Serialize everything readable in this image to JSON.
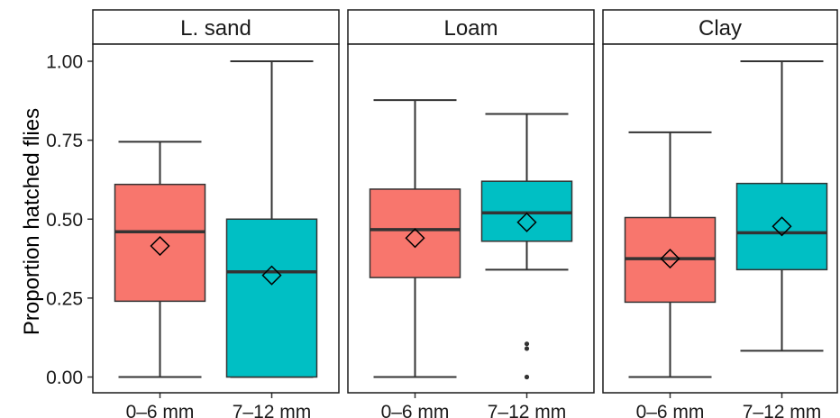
{
  "chart_data": {
    "type": "boxplot",
    "ylabel": "Proportion hatched flies",
    "xlabel": "",
    "ylim": [
      -0.04,
      1.05
    ],
    "y_ticks": [
      "0.00",
      "0.25",
      "0.50",
      "0.75",
      "1.00"
    ],
    "y_tick_values": [
      0,
      0.25,
      0.5,
      0.75,
      1.0
    ],
    "categories": [
      "0–6 mm",
      "7–12 mm"
    ],
    "colors": {
      "0–6 mm": "#F8766D",
      "7–12 mm": "#00BFC4"
    },
    "mean_marker": "diamond",
    "grid": false,
    "legend": "none",
    "facets": [
      {
        "label": "L. sand",
        "boxes": [
          {
            "category": "0–6 mm",
            "min": 0.0,
            "q1": 0.24,
            "median": 0.46,
            "q3": 0.61,
            "max": 0.745,
            "mean": 0.415,
            "outliers": []
          },
          {
            "category": "7–12 mm",
            "min": 0.0,
            "q1": 0.0,
            "median": 0.333,
            "q3": 0.5,
            "max": 1.0,
            "mean": 0.322,
            "outliers": []
          }
        ]
      },
      {
        "label": "Loam",
        "boxes": [
          {
            "category": "0–6 mm",
            "min": 0.0,
            "q1": 0.315,
            "median": 0.467,
            "q3": 0.595,
            "max": 0.877,
            "mean": 0.44,
            "outliers": []
          },
          {
            "category": "7–12 mm",
            "min": 0.34,
            "q1": 0.43,
            "median": 0.52,
            "q3": 0.62,
            "max": 0.833,
            "mean": 0.49,
            "outliers": [
              0.0,
              0.09,
              0.105
            ]
          }
        ]
      },
      {
        "label": "Clay",
        "boxes": [
          {
            "category": "0–6 mm",
            "min": 0.0,
            "q1": 0.237,
            "median": 0.375,
            "q3": 0.505,
            "max": 0.775,
            "mean": 0.375,
            "outliers": []
          },
          {
            "category": "7–12 mm",
            "min": 0.083,
            "q1": 0.34,
            "median": 0.457,
            "q3": 0.613,
            "max": 1.0,
            "mean": 0.477,
            "outliers": []
          }
        ]
      }
    ]
  }
}
